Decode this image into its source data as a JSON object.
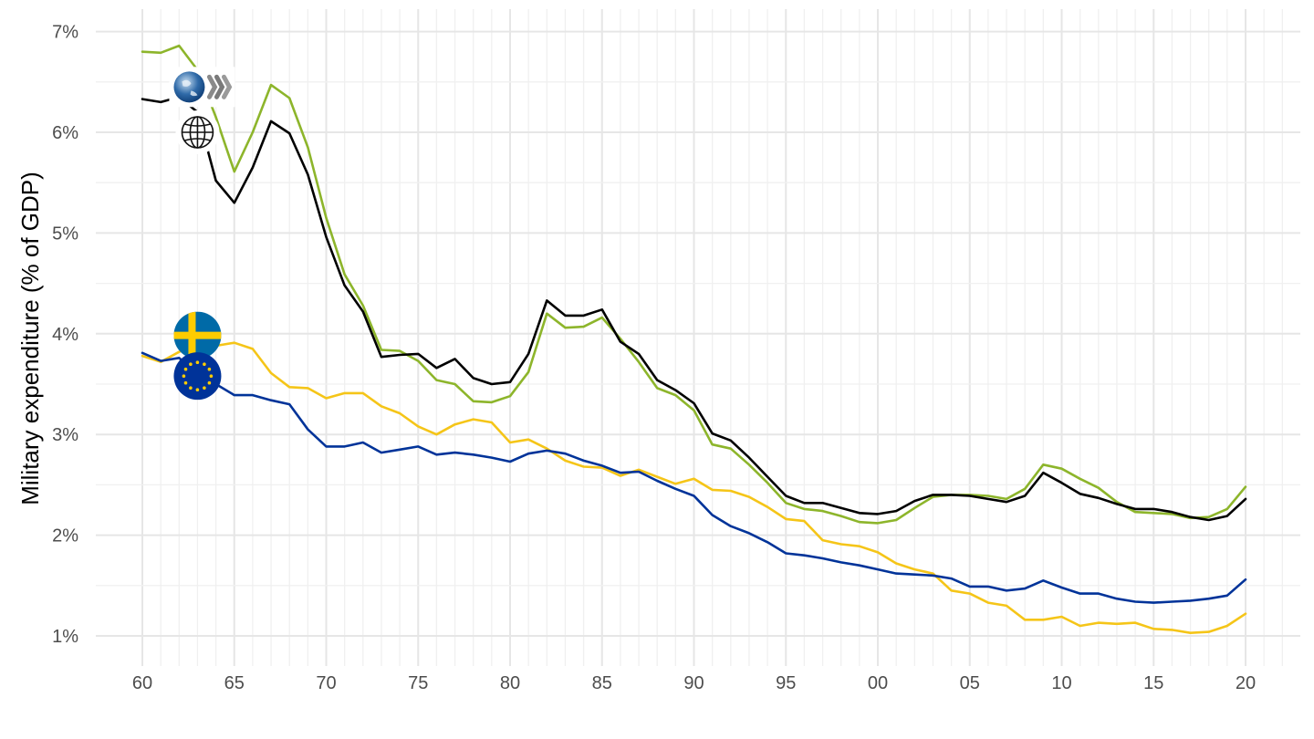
{
  "chart_data": {
    "type": "line",
    "title": "",
    "xlabel": "",
    "ylabel": "Military expenditure (% of GDP)",
    "xlim": [
      1957.5,
      2022.5
    ],
    "ylim": [
      0.85,
      7.1
    ],
    "y_ticks": [
      1,
      2,
      3,
      4,
      5,
      6,
      7
    ],
    "y_tick_labels": [
      "1%",
      "2%",
      "3%",
      "4%",
      "5%",
      "6%",
      "7%"
    ],
    "x_ticks": [
      1960,
      1965,
      1970,
      1975,
      1980,
      1985,
      1990,
      1995,
      2000,
      2005,
      2010,
      2015,
      2020
    ],
    "x_tick_labels": [
      "60",
      "65",
      "70",
      "75",
      "80",
      "85",
      "90",
      "95",
      "00",
      "05",
      "10",
      "15",
      "20"
    ],
    "grid": true,
    "x": [
      1960,
      1961,
      1962,
      1963,
      1964,
      1965,
      1966,
      1967,
      1968,
      1969,
      1970,
      1971,
      1972,
      1973,
      1974,
      1975,
      1976,
      1977,
      1978,
      1979,
      1980,
      1981,
      1982,
      1983,
      1984,
      1985,
      1986,
      1987,
      1988,
      1989,
      1990,
      1991,
      1992,
      1993,
      1994,
      1995,
      1996,
      1997,
      1998,
      1999,
      2000,
      2001,
      2002,
      2003,
      2004,
      2005,
      2006,
      2007,
      2008,
      2009,
      2010,
      2011,
      2012,
      2013,
      2014,
      2015,
      2016,
      2017,
      2018,
      2019,
      2020
    ],
    "series": [
      {
        "key": "oecd",
        "icon": "oecd-logo-icon",
        "color": "#8db52b",
        "values": [
          6.8,
          6.79,
          6.86,
          6.62,
          6.15,
          5.61,
          6.0,
          6.47,
          6.34,
          5.85,
          5.15,
          4.59,
          4.28,
          3.84,
          3.83,
          3.73,
          3.54,
          3.5,
          3.33,
          3.32,
          3.38,
          3.62,
          4.2,
          4.06,
          4.07,
          4.16,
          3.95,
          3.72,
          3.46,
          3.39,
          3.24,
          2.9,
          2.86,
          2.7,
          2.52,
          2.32,
          2.26,
          2.24,
          2.19,
          2.13,
          2.12,
          2.15,
          2.27,
          2.38,
          2.4,
          2.4,
          2.39,
          2.36,
          2.46,
          2.7,
          2.66,
          2.56,
          2.47,
          2.33,
          2.23,
          2.22,
          2.21,
          2.17,
          2.18,
          2.26,
          2.48
        ]
      },
      {
        "key": "world",
        "icon": "world-globe-icon",
        "color": "#000000",
        "values": [
          6.33,
          6.3,
          6.35,
          6.2,
          5.52,
          5.3,
          5.65,
          6.11,
          5.99,
          5.58,
          4.96,
          4.48,
          4.22,
          3.77,
          3.79,
          3.8,
          3.66,
          3.75,
          3.56,
          3.5,
          3.52,
          3.8,
          4.33,
          4.18,
          4.18,
          4.24,
          3.92,
          3.8,
          3.54,
          3.44,
          3.31,
          3.01,
          2.94,
          2.77,
          2.58,
          2.39,
          2.32,
          2.32,
          2.27,
          2.22,
          2.21,
          2.24,
          2.34,
          2.4,
          2.4,
          2.39,
          2.36,
          2.33,
          2.39,
          2.62,
          2.52,
          2.41,
          2.37,
          2.31,
          2.26,
          2.26,
          2.23,
          2.18,
          2.15,
          2.19,
          2.36
        ]
      },
      {
        "key": "sweden",
        "icon": "sweden-flag-icon",
        "color": "#f5c518",
        "values": [
          3.78,
          3.72,
          3.82,
          3.92,
          3.88,
          3.91,
          3.85,
          3.61,
          3.47,
          3.46,
          3.36,
          3.41,
          3.41,
          3.28,
          3.21,
          3.08,
          3.0,
          3.1,
          3.15,
          3.12,
          2.92,
          2.95,
          2.86,
          2.74,
          2.68,
          2.67,
          2.59,
          2.65,
          2.58,
          2.51,
          2.56,
          2.45,
          2.44,
          2.38,
          2.28,
          2.16,
          2.14,
          1.95,
          1.91,
          1.89,
          1.83,
          1.72,
          1.66,
          1.62,
          1.45,
          1.42,
          1.33,
          1.3,
          1.16,
          1.16,
          1.19,
          1.1,
          1.13,
          1.12,
          1.13,
          1.07,
          1.06,
          1.03,
          1.04,
          1.1,
          1.22
        ]
      },
      {
        "key": "euro-area",
        "icon": "eu-flag-icon",
        "color": "#003399",
        "values": [
          3.81,
          3.73,
          3.76,
          3.6,
          3.5,
          3.39,
          3.39,
          3.34,
          3.3,
          3.05,
          2.88,
          2.88,
          2.92,
          2.82,
          2.85,
          2.88,
          2.8,
          2.82,
          2.8,
          2.77,
          2.73,
          2.81,
          2.84,
          2.81,
          2.74,
          2.69,
          2.62,
          2.63,
          2.54,
          2.46,
          2.39,
          2.2,
          2.09,
          2.02,
          1.93,
          1.82,
          1.8,
          1.77,
          1.73,
          1.7,
          1.66,
          1.62,
          1.61,
          1.6,
          1.57,
          1.49,
          1.49,
          1.45,
          1.47,
          1.55,
          1.48,
          1.42,
          1.42,
          1.37,
          1.34,
          1.33,
          1.34,
          1.35,
          1.37,
          1.4,
          1.56
        ]
      }
    ]
  }
}
